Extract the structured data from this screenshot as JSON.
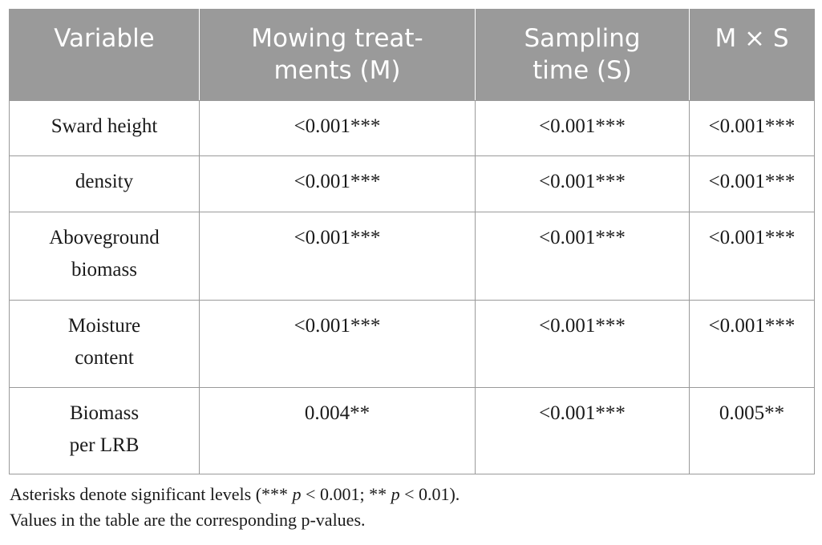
{
  "table": {
    "headers": {
      "variable": "Variable",
      "mowing": [
        "Mowing treat-",
        "ments (M)"
      ],
      "sampling": [
        "Sampling",
        "time (S)"
      ],
      "interaction": "M × S"
    },
    "rows": [
      {
        "variable": [
          "Sward height"
        ],
        "mowing": "<0.001***",
        "sampling": "<0.001***",
        "interaction": "<0.001***"
      },
      {
        "variable": [
          "density"
        ],
        "mowing": "<0.001***",
        "sampling": "<0.001***",
        "interaction": "<0.001***"
      },
      {
        "variable": [
          "Aboveground",
          "biomass"
        ],
        "mowing": "<0.001***",
        "sampling": "<0.001***",
        "interaction": "<0.001***"
      },
      {
        "variable": [
          "Moisture",
          "content"
        ],
        "mowing": "<0.001***",
        "sampling": "<0.001***",
        "interaction": "<0.001***"
      },
      {
        "variable": [
          "Biomass",
          "per LRB"
        ],
        "mowing": "0.004**",
        "sampling": "<0.001***",
        "interaction": "0.005**"
      }
    ]
  },
  "footnotes": {
    "line1_pre": "Asterisks denote significant levels (*** ",
    "p": "p",
    "line1_mid": " < 0.001; ** ",
    "line1_post": " < 0.01).",
    "line2": "Values in the table are the corresponding p-values."
  }
}
